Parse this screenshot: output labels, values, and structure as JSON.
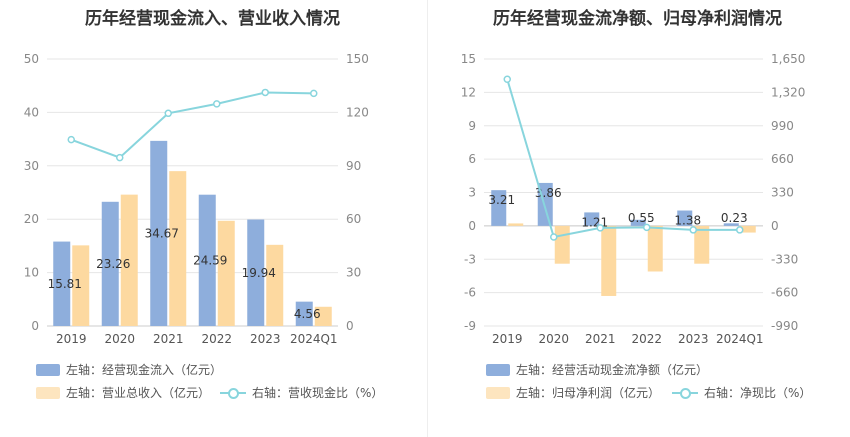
{
  "chart_data": [
    {
      "type": "bar",
      "title": "历年经营现金流入、营业收入情况",
      "categories": [
        "2019",
        "2020",
        "2021",
        "2022",
        "2023",
        "2024Q1"
      ],
      "left_axis": {
        "ticks": [
          "0",
          "10",
          "20",
          "30",
          "40",
          "50"
        ],
        "ylim": [
          0,
          50
        ]
      },
      "right_axis": {
        "ticks": [
          "0",
          "30",
          "60",
          "90",
          "120",
          "150"
        ],
        "ylim": [
          0,
          150
        ]
      },
      "series": [
        {
          "name": "左轴：经营现金流入（亿元）",
          "type": "bar",
          "axis": "left",
          "color": "#8eaedc",
          "values": [
            15.81,
            23.26,
            34.67,
            24.59,
            19.94,
            4.56
          ],
          "labels": [
            "15.81",
            "23.26",
            "34.67",
            "24.59",
            "19.94",
            "4.56"
          ]
        },
        {
          "name": "左轴：营业总收入（亿元）",
          "type": "bar",
          "axis": "left",
          "color": "#fdd9a0",
          "values": [
            15.1,
            24.6,
            29.0,
            19.7,
            15.2,
            3.6
          ]
        },
        {
          "name": "右轴：营收现金比（%）",
          "type": "line",
          "axis": "right",
          "color": "#88d5dd",
          "values": [
            104.7,
            94.6,
            119.5,
            124.8,
            131.2,
            130.7
          ]
        }
      ]
    },
    {
      "type": "bar",
      "title": "历年经营现金流净额、归母净利润情况",
      "categories": [
        "2019",
        "2020",
        "2021",
        "2022",
        "2023",
        "2024Q1"
      ],
      "left_axis": {
        "ticks": [
          "-9",
          "-6",
          "-3",
          "0",
          "3",
          "6",
          "9",
          "12",
          "15"
        ],
        "ylim": [
          -9,
          15
        ]
      },
      "right_axis": {
        "ticks": [
          "-990",
          "-660",
          "-330",
          "0",
          "330",
          "660",
          "990",
          "1,320",
          "1,650"
        ],
        "ylim": [
          -990,
          1650
        ]
      },
      "series": [
        {
          "name": "左轴：经营活动现金流净额（亿元）",
          "type": "bar",
          "axis": "left",
          "color": "#8eaedc",
          "values": [
            3.21,
            3.86,
            1.21,
            0.55,
            1.38,
            0.23
          ],
          "labels": [
            "3.21",
            "3.86",
            "1.21",
            "0.55",
            "1.38",
            "0.23"
          ]
        },
        {
          "name": "左轴：归母净利润（亿元）",
          "type": "bar",
          "axis": "left",
          "color": "#fdd9a0",
          "values": [
            0.22,
            -3.4,
            -6.3,
            -4.1,
            -3.4,
            -0.6
          ]
        },
        {
          "name": "右轴：净现比（%）",
          "type": "line",
          "axis": "right",
          "color": "#88d5dd",
          "values": [
            1450,
            -110,
            -20,
            -15,
            -40,
            -40
          ]
        }
      ]
    }
  ]
}
